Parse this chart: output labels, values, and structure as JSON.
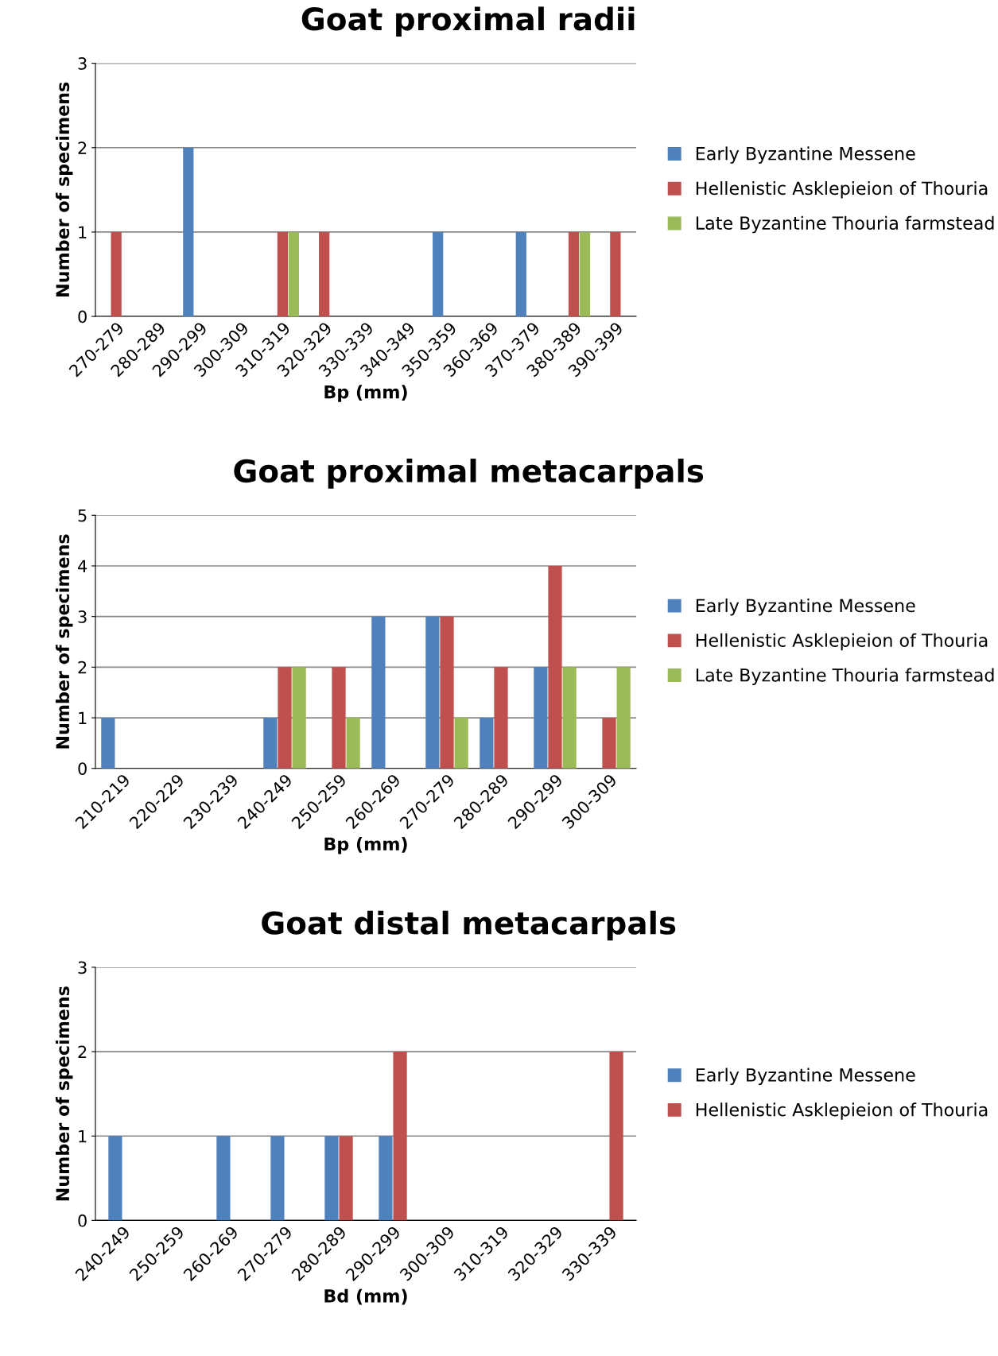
{
  "chart_data": [
    {
      "type": "bar",
      "title": "Goat proximal radii",
      "xlabel": "Bp (mm)",
      "ylabel": "Number of specimens",
      "categories": [
        "270-279",
        "280-289",
        "290-299",
        "300-309",
        "310-319",
        "320-329",
        "330-339",
        "340-349",
        "350-359",
        "360-369",
        "370-379",
        "380-389",
        "390-399"
      ],
      "series": [
        {
          "name": "Early Byzantine Messene",
          "color": "#4f81bd",
          "values": [
            0,
            0,
            2,
            0,
            0,
            0,
            0,
            0,
            1,
            0,
            1,
            0,
            0
          ]
        },
        {
          "name": "Hellenistic Asklepieion of Thouria",
          "color": "#c0504d",
          "values": [
            1,
            0,
            0,
            0,
            1,
            1,
            0,
            0,
            0,
            0,
            0,
            1,
            1
          ]
        },
        {
          "name": "Late Byzantine Thouria farmstead",
          "color": "#9bbb59",
          "values": [
            0,
            0,
            0,
            0,
            1,
            0,
            0,
            0,
            0,
            0,
            0,
            1,
            0
          ]
        }
      ],
      "ylim": [
        0,
        3
      ],
      "yticks": [
        0,
        1,
        2,
        3
      ],
      "grid": "y",
      "legend": "right"
    },
    {
      "type": "bar",
      "title": "Goat proximal metacarpals",
      "xlabel": "Bp (mm)",
      "ylabel": "Number of specimens",
      "categories": [
        "210-219",
        "220-229",
        "230-239",
        "240-249",
        "250-259",
        "260-269",
        "270-279",
        "280-289",
        "290-299",
        "300-309"
      ],
      "series": [
        {
          "name": "Early Byzantine Messene",
          "color": "#4f81bd",
          "values": [
            1,
            0,
            0,
            1,
            0,
            3,
            3,
            1,
            2,
            0
          ]
        },
        {
          "name": "Hellenistic Asklepieion of Thouria",
          "color": "#c0504d",
          "values": [
            0,
            0,
            0,
            2,
            2,
            0,
            3,
            2,
            4,
            1
          ]
        },
        {
          "name": "Late Byzantine Thouria farmstead",
          "color": "#9bbb59",
          "values": [
            0,
            0,
            0,
            2,
            1,
            0,
            1,
            0,
            2,
            2
          ]
        }
      ],
      "ylim": [
        0,
        5
      ],
      "yticks": [
        0,
        1,
        2,
        3,
        4,
        5
      ],
      "grid": "y",
      "legend": "right"
    },
    {
      "type": "bar",
      "title": "Goat distal metacarpals",
      "xlabel": "Bd (mm)",
      "ylabel": "Number of specimens",
      "categories": [
        "240-249",
        "250-259",
        "260-269",
        "270-279",
        "280-289",
        "290-299",
        "300-309",
        "310-319",
        "320-329",
        "330-339"
      ],
      "series": [
        {
          "name": "Early Byzantine Messene",
          "color": "#4f81bd",
          "values": [
            1,
            0,
            1,
            1,
            1,
            1,
            0,
            0,
            0,
            0
          ]
        },
        {
          "name": "Hellenistic Asklepieion of Thouria",
          "color": "#c0504d",
          "values": [
            0,
            0,
            0,
            0,
            1,
            2,
            0,
            0,
            0,
            2
          ]
        }
      ],
      "ylim": [
        0,
        3
      ],
      "yticks": [
        0,
        1,
        2,
        3
      ],
      "grid": "y",
      "legend": "right"
    }
  ]
}
